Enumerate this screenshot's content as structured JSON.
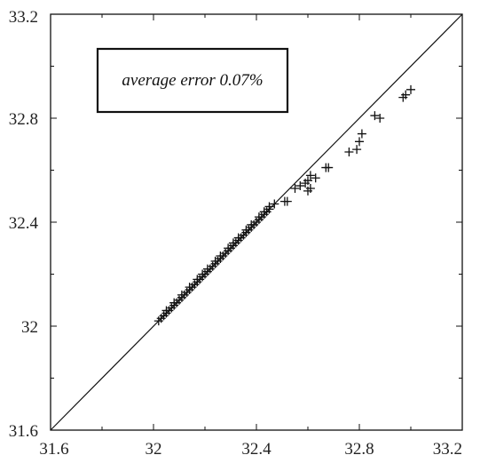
{
  "chart_data": {
    "type": "scatter",
    "title": "",
    "xlabel": "",
    "ylabel": "",
    "xlim": [
      31.6,
      33.2
    ],
    "ylim": [
      31.6,
      33.2
    ],
    "x_ticks": [
      31.6,
      32,
      32.4,
      32.8,
      33.2
    ],
    "y_ticks": [
      31.6,
      32,
      32.4,
      32.8,
      33.2
    ],
    "x_tick_labels": [
      "31.6",
      "32",
      "32.4",
      "32.8",
      "33.2"
    ],
    "y_tick_labels": [
      "31.6",
      "32",
      "32.4",
      "32.8",
      "33.2"
    ],
    "minor_ticks_per_interval": 1,
    "grid": false,
    "marker": "plus",
    "reference_line": {
      "x": [
        31.6,
        33.2
      ],
      "y": [
        31.6,
        33.2
      ]
    },
    "annotation": "average error 0.07%",
    "points": [
      [
        32.02,
        32.02
      ],
      [
        32.03,
        32.03
      ],
      [
        32.04,
        32.04
      ],
      [
        32.05,
        32.05
      ],
      [
        32.06,
        32.06
      ],
      [
        32.07,
        32.07
      ],
      [
        32.08,
        32.08
      ],
      [
        32.09,
        32.09
      ],
      [
        32.1,
        32.1
      ],
      [
        32.11,
        32.11
      ],
      [
        32.12,
        32.12
      ],
      [
        32.13,
        32.13
      ],
      [
        32.14,
        32.14
      ],
      [
        32.15,
        32.15
      ],
      [
        32.16,
        32.16
      ],
      [
        32.17,
        32.17
      ],
      [
        32.18,
        32.18
      ],
      [
        32.19,
        32.19
      ],
      [
        32.2,
        32.2
      ],
      [
        32.21,
        32.21
      ],
      [
        32.22,
        32.22
      ],
      [
        32.23,
        32.23
      ],
      [
        32.24,
        32.24
      ],
      [
        32.25,
        32.25
      ],
      [
        32.26,
        32.26
      ],
      [
        32.27,
        32.27
      ],
      [
        32.28,
        32.28
      ],
      [
        32.29,
        32.29
      ],
      [
        32.3,
        32.3
      ],
      [
        32.31,
        32.31
      ],
      [
        32.32,
        32.32
      ],
      [
        32.33,
        32.33
      ],
      [
        32.34,
        32.34
      ],
      [
        32.35,
        32.35
      ],
      [
        32.36,
        32.36
      ],
      [
        32.37,
        32.37
      ],
      [
        32.38,
        32.38
      ],
      [
        32.39,
        32.39
      ],
      [
        32.4,
        32.4
      ],
      [
        32.41,
        32.41
      ],
      [
        32.42,
        32.42
      ],
      [
        32.43,
        32.43
      ],
      [
        32.44,
        32.44
      ],
      [
        32.45,
        32.45
      ],
      [
        32.05,
        32.06
      ],
      [
        32.08,
        32.09
      ],
      [
        32.11,
        32.12
      ],
      [
        32.14,
        32.15
      ],
      [
        32.17,
        32.18
      ],
      [
        32.19,
        32.2
      ],
      [
        32.21,
        32.22
      ],
      [
        32.24,
        32.25
      ],
      [
        32.26,
        32.27
      ],
      [
        32.29,
        32.3
      ],
      [
        32.31,
        32.32
      ],
      [
        32.33,
        32.34
      ],
      [
        32.36,
        32.37
      ],
      [
        32.38,
        32.39
      ],
      [
        32.41,
        32.42
      ],
      [
        32.43,
        32.44
      ],
      [
        32.45,
        32.46
      ],
      [
        32.47,
        32.47
      ],
      [
        32.51,
        32.48
      ],
      [
        32.52,
        32.48
      ],
      [
        32.55,
        32.53
      ],
      [
        32.57,
        32.54
      ],
      [
        32.59,
        32.55
      ],
      [
        32.6,
        32.56
      ],
      [
        32.61,
        32.58
      ],
      [
        32.6,
        32.52
      ],
      [
        32.61,
        32.53
      ],
      [
        32.63,
        32.57
      ],
      [
        32.67,
        32.61
      ],
      [
        32.68,
        32.61
      ],
      [
        32.76,
        32.67
      ],
      [
        32.79,
        32.68
      ],
      [
        32.8,
        32.71
      ],
      [
        32.81,
        32.74
      ],
      [
        32.86,
        32.81
      ],
      [
        32.88,
        32.8
      ],
      [
        32.97,
        32.88
      ],
      [
        32.98,
        32.89
      ],
      [
        33.0,
        32.91
      ]
    ]
  }
}
